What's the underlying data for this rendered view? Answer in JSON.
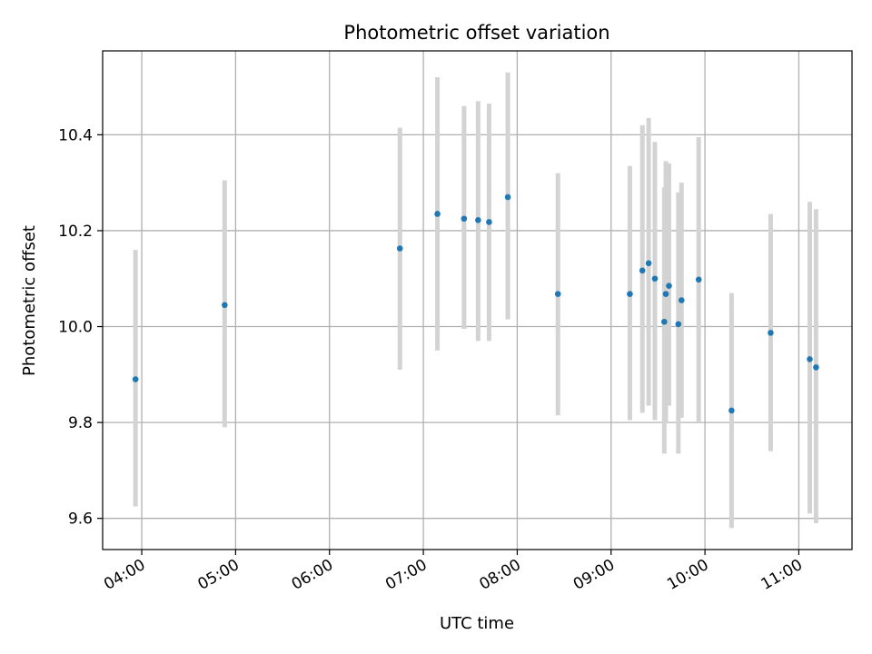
{
  "chart_data": {
    "type": "scatter",
    "title": "Photometric offset variation",
    "xlabel": "UTC time",
    "ylabel": "Photometric offset",
    "x_unit": "hour",
    "xlim": [
      "03:35",
      "11:34"
    ],
    "ylim": [
      9.535,
      10.575
    ],
    "xticks": [
      "04:00",
      "05:00",
      "06:00",
      "07:00",
      "08:00",
      "09:00",
      "10:00",
      "11:00"
    ],
    "yticks": [
      9.6,
      9.8,
      10.0,
      10.2,
      10.4
    ],
    "ytick_labels": [
      "9.6",
      "9.8",
      "10.0",
      "10.2",
      "10.4"
    ],
    "grid": true,
    "colors": {
      "marker": "#1f77b4",
      "errorbar": "#d3d3d3",
      "grid": "#b0b0b0"
    },
    "series": [
      {
        "points": [
          {
            "x": "03:56",
            "y": 9.89,
            "ylow": 9.625,
            "yhigh": 10.16
          },
          {
            "x": "04:53",
            "y": 10.045,
            "ylow": 9.79,
            "yhigh": 10.305
          },
          {
            "x": "06:45",
            "y": 10.163,
            "ylow": 9.91,
            "yhigh": 10.415
          },
          {
            "x": "07:09",
            "y": 10.235,
            "ylow": 9.95,
            "yhigh": 10.52
          },
          {
            "x": "07:26",
            "y": 10.225,
            "ylow": 9.995,
            "yhigh": 10.46
          },
          {
            "x": "07:35",
            "y": 10.222,
            "ylow": 9.97,
            "yhigh": 10.47
          },
          {
            "x": "07:42",
            "y": 10.218,
            "ylow": 9.97,
            "yhigh": 10.465
          },
          {
            "x": "07:54",
            "y": 10.27,
            "ylow": 10.015,
            "yhigh": 10.53
          },
          {
            "x": "08:26",
            "y": 10.068,
            "ylow": 9.815,
            "yhigh": 10.32
          },
          {
            "x": "09:12",
            "y": 10.068,
            "ylow": 9.805,
            "yhigh": 10.335
          },
          {
            "x": "09:20",
            "y": 10.117,
            "ylow": 9.82,
            "yhigh": 10.42
          },
          {
            "x": "09:24",
            "y": 10.132,
            "ylow": 9.835,
            "yhigh": 10.435
          },
          {
            "x": "09:28",
            "y": 10.1,
            "ylow": 9.805,
            "yhigh": 10.385
          },
          {
            "x": "09:34",
            "y": 10.01,
            "ylow": 9.735,
            "yhigh": 10.29
          },
          {
            "x": "09:35",
            "y": 10.068,
            "ylow": 9.8,
            "yhigh": 10.345
          },
          {
            "x": "09:37",
            "y": 10.085,
            "ylow": 9.835,
            "yhigh": 10.34
          },
          {
            "x": "09:43",
            "y": 10.005,
            "ylow": 9.735,
            "yhigh": 10.28
          },
          {
            "x": "09:45",
            "y": 10.055,
            "ylow": 9.81,
            "yhigh": 10.3
          },
          {
            "x": "09:56",
            "y": 10.098,
            "ylow": 9.8,
            "yhigh": 10.395
          },
          {
            "x": "10:17",
            "y": 9.825,
            "ylow": 9.58,
            "yhigh": 10.07
          },
          {
            "x": "10:42",
            "y": 9.987,
            "ylow": 9.74,
            "yhigh": 10.235
          },
          {
            "x": "11:07",
            "y": 9.932,
            "ylow": 9.61,
            "yhigh": 10.26
          },
          {
            "x": "11:11",
            "y": 9.915,
            "ylow": 9.59,
            "yhigh": 10.245
          }
        ]
      }
    ]
  }
}
